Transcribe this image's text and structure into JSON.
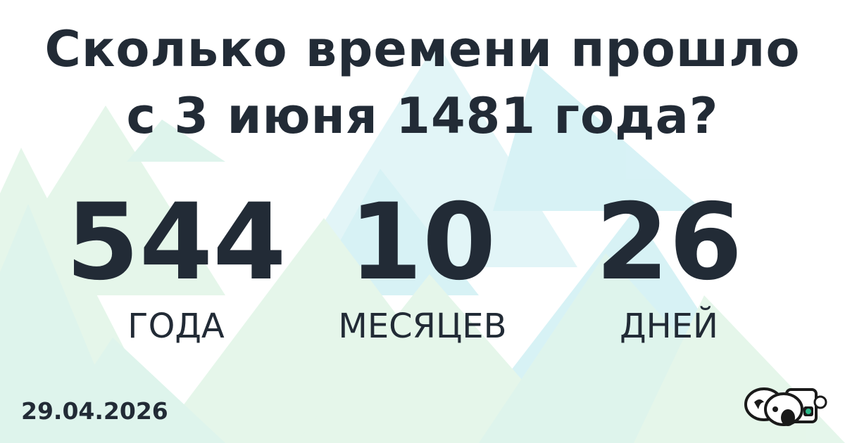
{
  "title": {
    "line1": "Сколько времени прошло",
    "line2": "с 3 июня 1481 года?"
  },
  "elapsed": [
    {
      "value": "544",
      "unit": "ГОДА"
    },
    {
      "value": "10",
      "unit": "МЕСЯЦЕВ"
    },
    {
      "value": "26",
      "unit": "ДНЕЙ"
    }
  ],
  "date": "29.04.2026",
  "logo": {
    "icon": "koala-robot-logo"
  },
  "colors": {
    "text": "#222b36",
    "mint": "#b8e8d6",
    "cyan": "#bfe9ee",
    "green": "#c6ecd2",
    "logo_accent": "#2bb98a"
  }
}
